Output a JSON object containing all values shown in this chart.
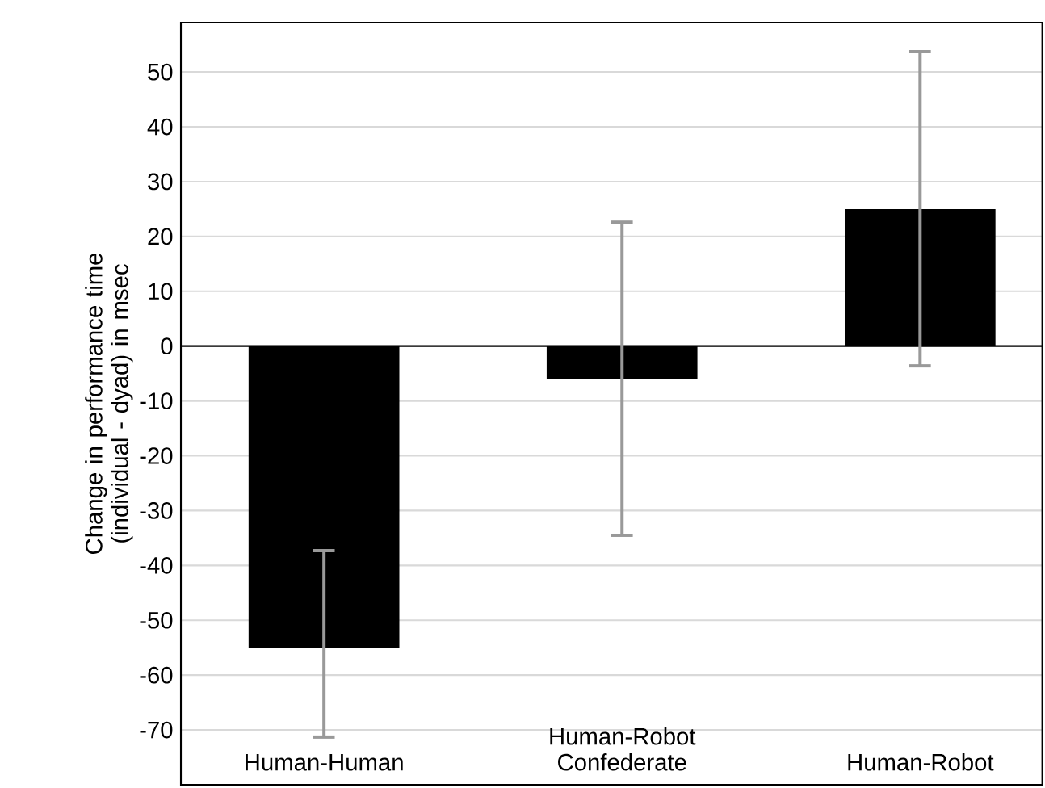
{
  "chart_data": {
    "type": "bar",
    "ylabel": "Change in performance time (individual - dyad) in msec",
    "categories": [
      "Human-Human",
      "Human-Robot Confederate",
      "Human-Robot"
    ],
    "values": [
      -55,
      -6,
      25
    ],
    "color": "#000000",
    "errors": [
      [
        -71.3,
        -37.3
      ],
      [
        -34.5,
        22.6
      ],
      [
        -3.6,
        53.7
      ]
    ],
    "ylim": [
      -80,
      59
    ],
    "yticks": [
      -70,
      -60,
      -50,
      -40,
      -30,
      -20,
      -10,
      0,
      10,
      20,
      30,
      40,
      50
    ],
    "grid": "y"
  }
}
